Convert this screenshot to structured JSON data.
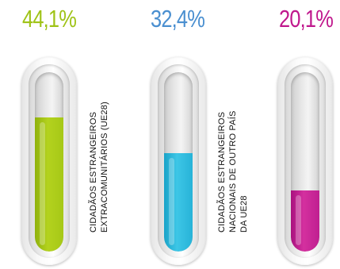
{
  "chart_data": {
    "type": "bar",
    "categories": [
      "CIDADÃOS ESTRANGEIROS EXTRACOMUNITÁRIOS (UE28)",
      "CIDADÃOS ESTRANGEIROS NACIONAIS DE OUTRO PAÍS DA UE28",
      ""
    ],
    "values": [
      44.1,
      32.4,
      20.1
    ],
    "value_labels": [
      "44,1%",
      "32,4%",
      "20,1%"
    ],
    "ylim": [
      0,
      100
    ],
    "colors": [
      "#a6c817",
      "#2cb5da",
      "#c01f8f"
    ],
    "label_lines": [
      [
        "CIDADÃOS ESTRANGEIROS",
        "EXTRACOMUNITÁRIOS (UE28)"
      ],
      [
        "CIDADÃOS ESTRANGEIROS",
        "NACIONAIS DE OUTRO PAÍS",
        "DA UE28"
      ]
    ]
  }
}
